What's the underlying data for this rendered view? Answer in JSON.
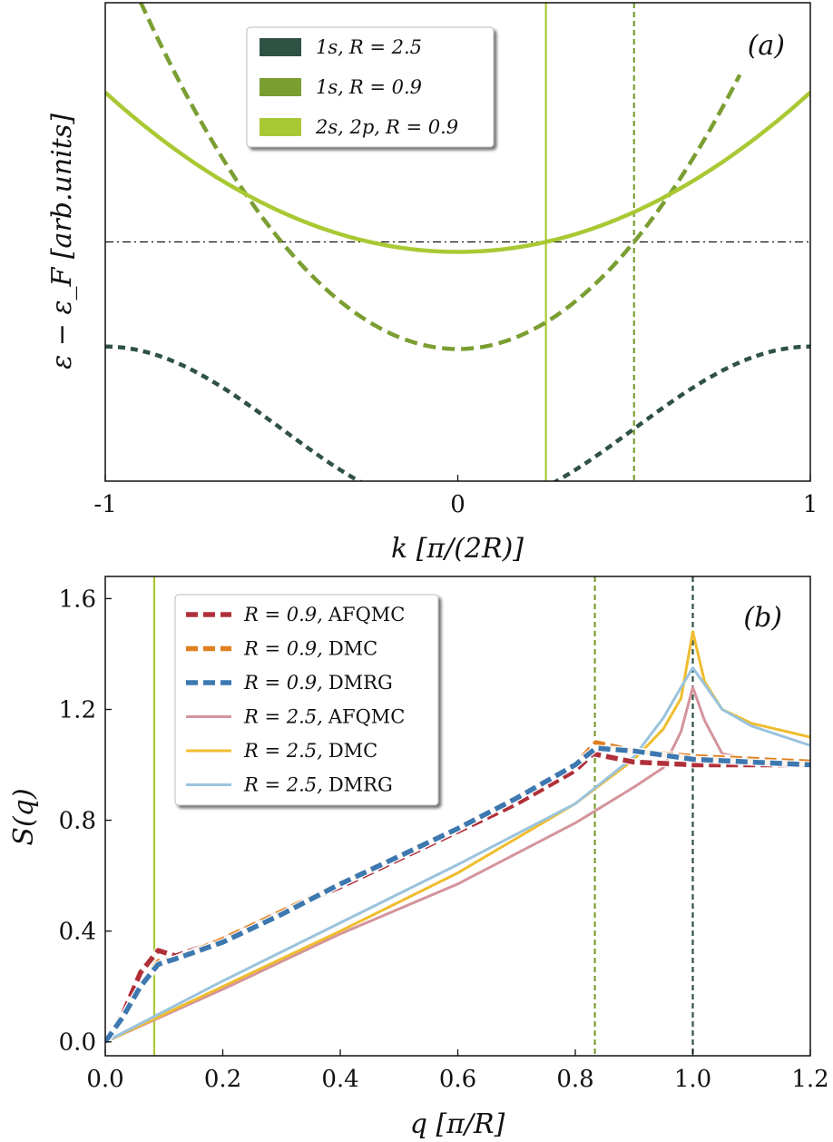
{
  "colors": {
    "dark_green": "#2f5244",
    "mid_green": "#7a9e32",
    "light_green": "#a9c934",
    "afqmc": "#b0303a",
    "dmc": "#e08020",
    "dmrg": "#3d78b0",
    "afqmc_light": "#d4949b",
    "dmc_light": "#efbd2e",
    "dmrg_light": "#9ac3dd",
    "ref_line": "#111111"
  },
  "chart_data": [
    {
      "id": "a",
      "type": "line",
      "panel_label": "(a)",
      "xlabel": "k [π/(2R)]",
      "ylabel": "ε − ε_F [arb.units]",
      "xlim": [
        -1,
        1
      ],
      "ylim": [
        -0.96,
        0.96
      ],
      "x_ticks": [
        -1,
        0,
        1
      ],
      "x_tick_labels": [
        "-1",
        "0",
        "1"
      ],
      "y_ticks_shown": false,
      "fermi_level": 0,
      "vlines": [
        {
          "x": 0.25,
          "style": "solid",
          "color": "light_green"
        },
        {
          "x": 0.5,
          "style": "dashed",
          "color": "mid_green"
        }
      ],
      "legend_position": "top-center",
      "series": [
        {
          "name": "1s, R = 2.5",
          "label_parts": [
            "1s,",
            "R = 2.5"
          ],
          "color": "dark_green",
          "style": "dotted-dash",
          "curve": "cosine",
          "center": -0.75,
          "amplitude": 0.33,
          "domain": [
            -1,
            1
          ]
        },
        {
          "name": "1s, R = 0.9",
          "label_parts": [
            "1s,",
            "R = 0.9"
          ],
          "color": "mid_green",
          "style": "dashed",
          "curve": "parabola",
          "min": -0.43,
          "coef": 1.72,
          "domain": [
            -0.9,
            0.8
          ]
        },
        {
          "name": "2s, 2p, R = 0.9",
          "label_parts": [
            "2s, 2p,",
            "R = 0.9"
          ],
          "color": "light_green",
          "style": "solid",
          "curve": "parabola",
          "min": -0.04,
          "coef": 0.64,
          "domain": [
            -1,
            1
          ]
        }
      ]
    },
    {
      "id": "b",
      "type": "line",
      "panel_label": "(b)",
      "xlabel": "q [π/R]",
      "ylabel": "S(q)",
      "xlim": [
        0,
        1.2
      ],
      "ylim": [
        -0.05,
        1.68
      ],
      "x_ticks": [
        0.0,
        0.2,
        0.4,
        0.6,
        0.8,
        1.0,
        1.2
      ],
      "x_tick_labels": [
        "0.0",
        "0.2",
        "0.4",
        "0.6",
        "0.8",
        "1.0",
        "1.2"
      ],
      "y_ticks": [
        0.0,
        0.4,
        0.8,
        1.2,
        1.6
      ],
      "y_tick_labels": [
        "0.0",
        "0.4",
        "0.8",
        "1.2",
        "1.6"
      ],
      "vlines": [
        {
          "x": 0.0833,
          "style": "solid",
          "color": "light_green"
        },
        {
          "x": 0.8333,
          "style": "dashed",
          "color": "mid_green"
        },
        {
          "x": 1.0,
          "style": "dashed",
          "color": "dark_green"
        }
      ],
      "legend_position": "top-left",
      "series": [
        {
          "name": "R = 0.9, AFQMC",
          "label_parts": [
            "R = 0.9,",
            "AFQMC"
          ],
          "color": "afqmc",
          "style": "dashed-thick",
          "x": [
            0,
            0.03,
            0.06,
            0.09,
            0.12,
            0.2,
            0.3,
            0.4,
            0.5,
            0.6,
            0.7,
            0.8,
            0.83,
            0.9,
            1.0,
            1.1,
            1.2
          ],
          "y": [
            0,
            0.1,
            0.25,
            0.33,
            0.31,
            0.37,
            0.47,
            0.56,
            0.66,
            0.76,
            0.86,
            0.98,
            1.04,
            1.01,
            1.0,
            1.0,
            1.0
          ]
        },
        {
          "name": "R = 0.9, DMC",
          "label_parts": [
            "R = 0.9,",
            "DMC"
          ],
          "color": "dmc",
          "style": "dashed-thick",
          "x": [
            0,
            0.03,
            0.06,
            0.09,
            0.12,
            0.2,
            0.3,
            0.4,
            0.5,
            0.6,
            0.7,
            0.8,
            0.835,
            0.9,
            1.0,
            1.1,
            1.2
          ],
          "y": [
            0,
            0.09,
            0.2,
            0.29,
            0.3,
            0.37,
            0.47,
            0.57,
            0.67,
            0.77,
            0.88,
            1.0,
            1.08,
            1.05,
            1.03,
            1.02,
            1.01
          ]
        },
        {
          "name": "R = 0.9, DMRG",
          "label_parts": [
            "R = 0.9,",
            "DMRG"
          ],
          "color": "dmrg",
          "style": "dashed-thick",
          "x": [
            0,
            0.03,
            0.06,
            0.09,
            0.12,
            0.2,
            0.3,
            0.4,
            0.5,
            0.6,
            0.7,
            0.8,
            0.835,
            0.9,
            1.0,
            1.1,
            1.2
          ],
          "y": [
            0,
            0.09,
            0.2,
            0.28,
            0.3,
            0.36,
            0.46,
            0.57,
            0.67,
            0.77,
            0.88,
            1.0,
            1.06,
            1.05,
            1.02,
            1.01,
            1.0
          ]
        },
        {
          "name": "R = 2.5, AFQMC",
          "label_parts": [
            "R = 2.5,",
            "AFQMC"
          ],
          "color": "afqmc_light",
          "style": "solid-thin",
          "x": [
            0,
            0.2,
            0.4,
            0.6,
            0.8,
            0.9,
            0.95,
            0.98,
            1.0,
            1.02,
            1.05,
            1.1,
            1.2
          ],
          "y": [
            0,
            0.19,
            0.39,
            0.57,
            0.79,
            0.92,
            0.99,
            1.12,
            1.28,
            1.16,
            1.04,
            1.02,
            1.0
          ]
        },
        {
          "name": "R = 2.5, DMC",
          "label_parts": [
            "R = 2.5,",
            "DMC"
          ],
          "color": "dmc_light",
          "style": "solid-thin",
          "x": [
            0,
            0.2,
            0.4,
            0.6,
            0.8,
            0.9,
            0.95,
            0.98,
            1.0,
            1.02,
            1.05,
            1.1,
            1.2
          ],
          "y": [
            0,
            0.2,
            0.4,
            0.61,
            0.86,
            1.02,
            1.13,
            1.24,
            1.48,
            1.3,
            1.2,
            1.15,
            1.1
          ]
        },
        {
          "name": "R = 2.5, DMRG",
          "label_parts": [
            "R = 2.5,",
            "DMRG"
          ],
          "color": "dmrg_light",
          "style": "solid-thin",
          "x": [
            0,
            0.2,
            0.4,
            0.6,
            0.8,
            0.9,
            0.95,
            0.98,
            1.0,
            1.02,
            1.05,
            1.1,
            1.2
          ],
          "y": [
            0,
            0.22,
            0.43,
            0.64,
            0.86,
            1.03,
            1.17,
            1.28,
            1.35,
            1.29,
            1.2,
            1.14,
            1.07
          ]
        }
      ]
    }
  ]
}
